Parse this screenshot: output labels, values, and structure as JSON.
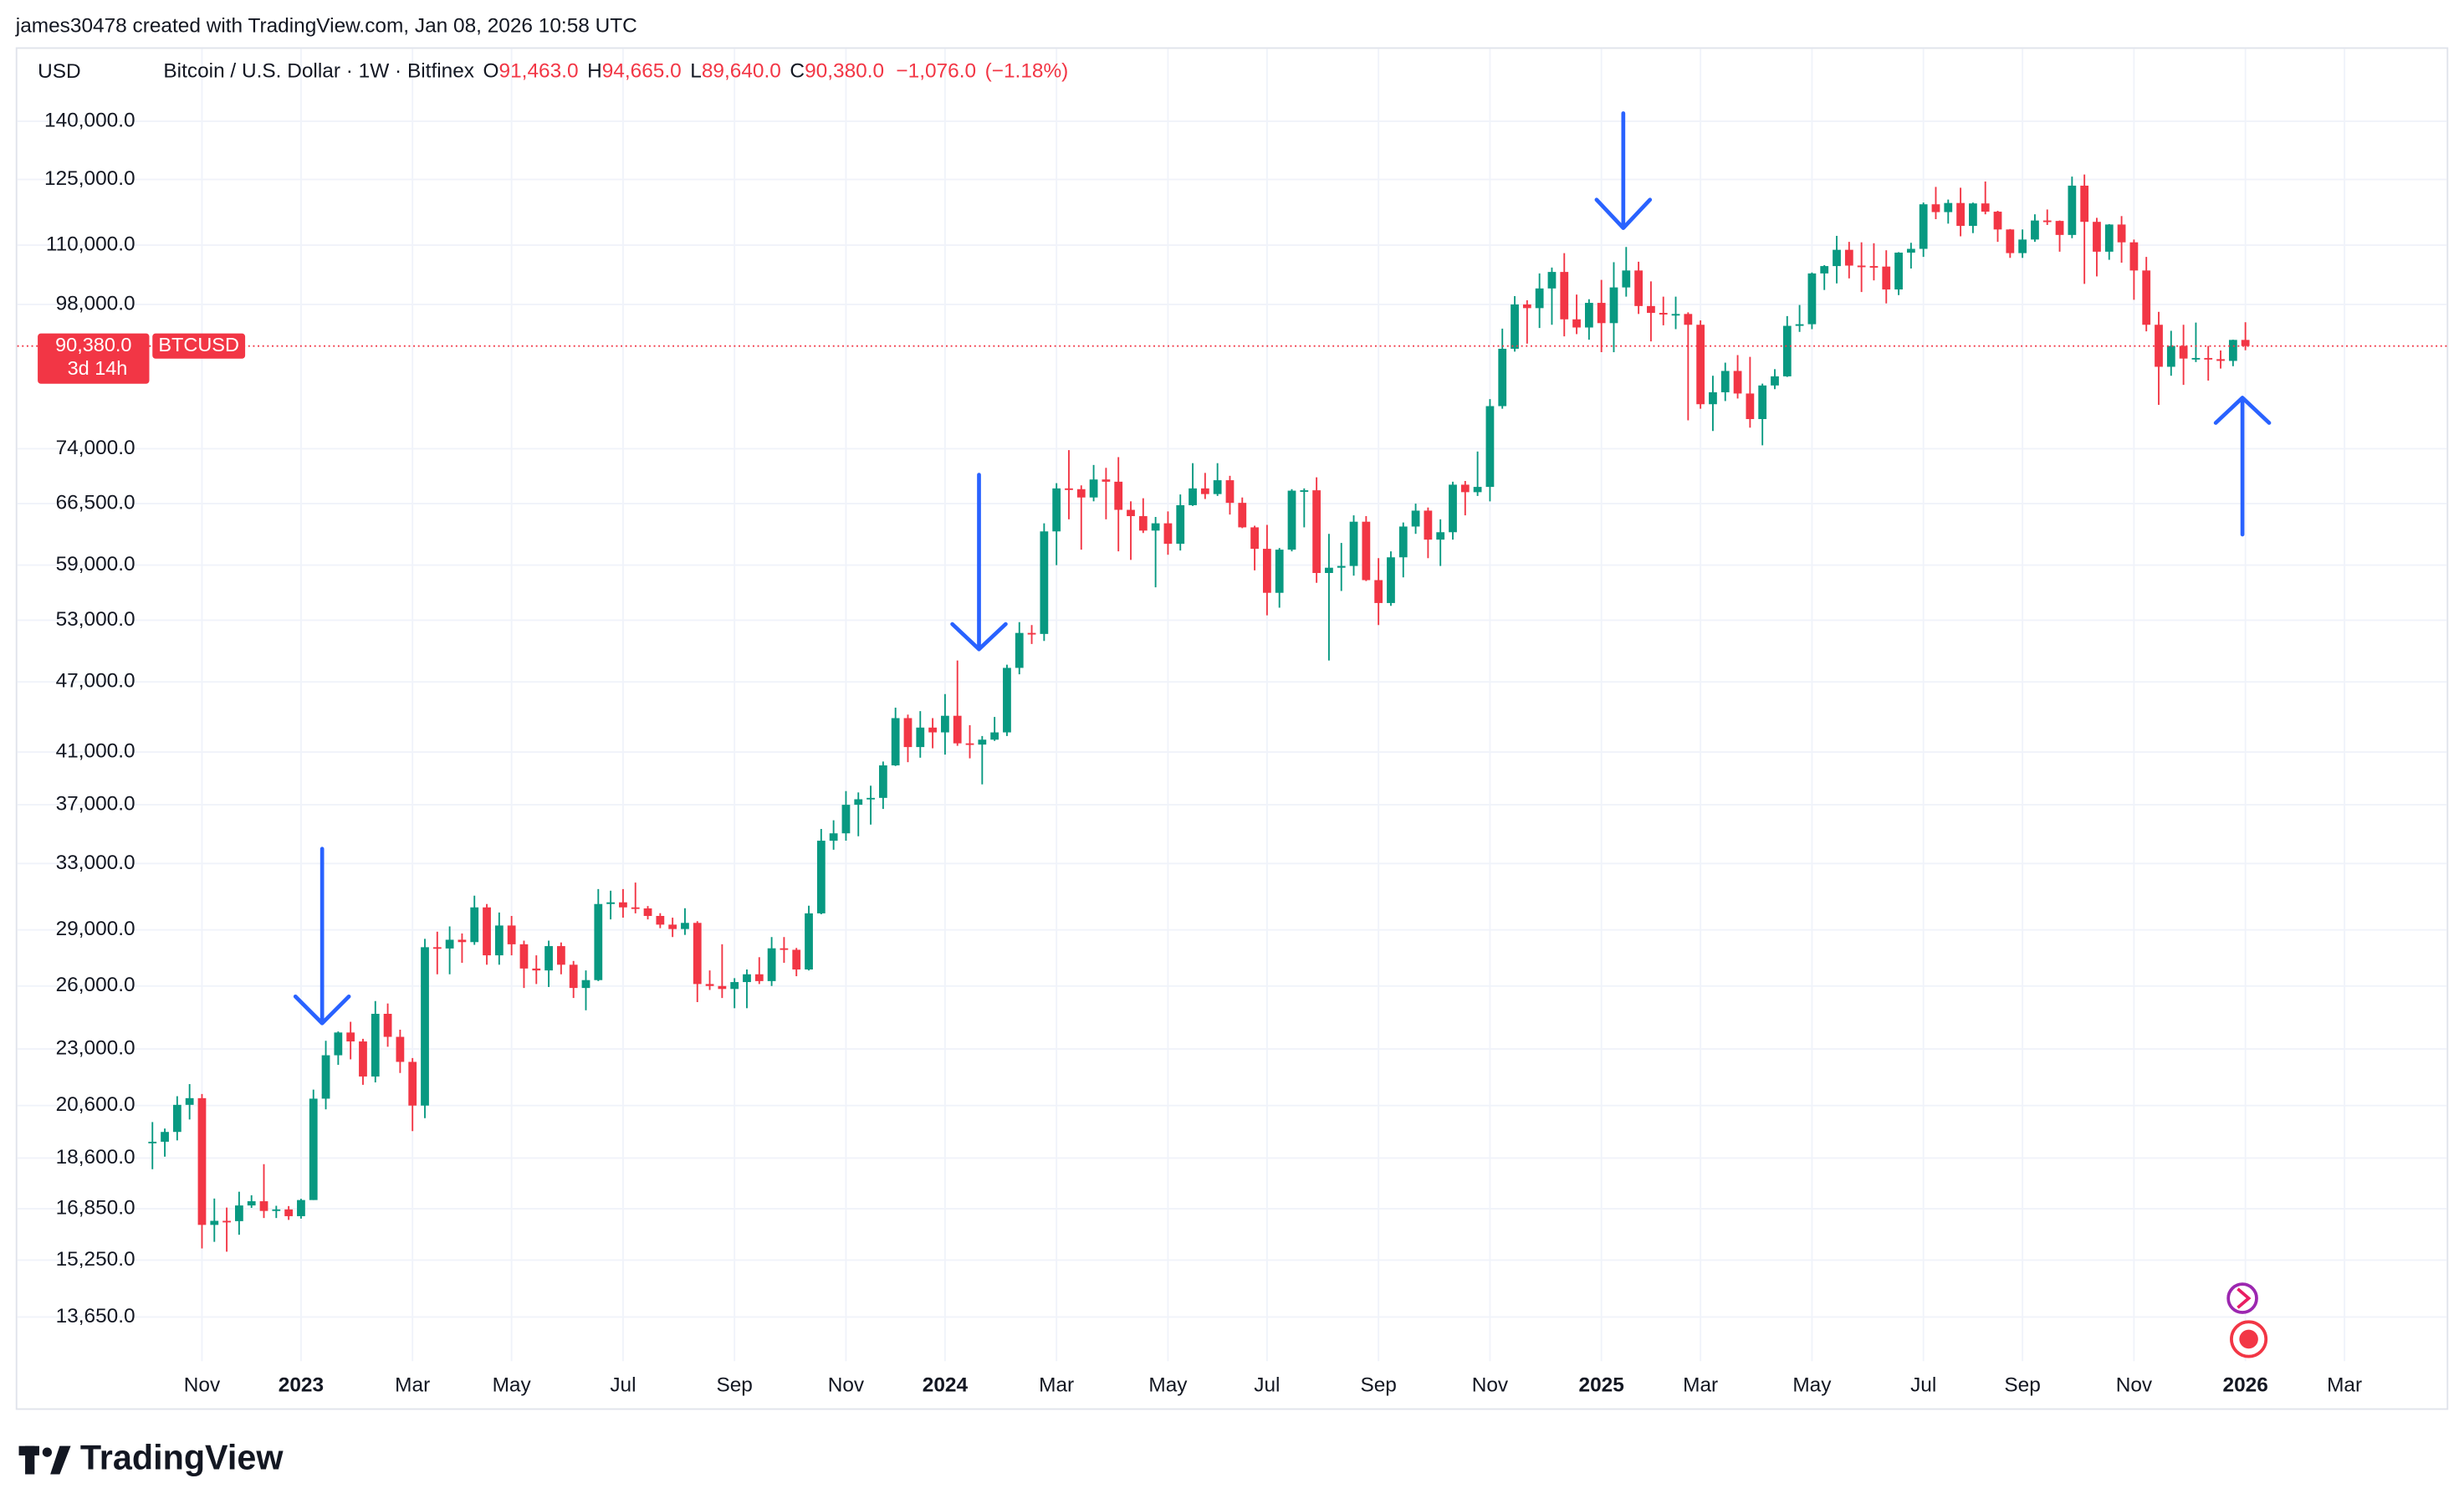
{
  "attribution": "james30478 created with TradingView.com, Jan 08, 2026 10:58 UTC",
  "brand": "TradingView",
  "chart_data": {
    "type": "candlestick",
    "currency": "USD",
    "symbol_title": "Bitcoin / U.S. Dollar · 1W · Bitfinex",
    "legend_fields": [
      {
        "key": "O",
        "value": 91463,
        "label": "91,463.0"
      },
      {
        "key": "H",
        "value": 94665,
        "label": "94,665.0"
      },
      {
        "key": "L",
        "value": 89640,
        "label": "89,640.0"
      },
      {
        "key": "C",
        "value": 90380,
        "label": "90,380.0"
      }
    ],
    "change": {
      "value": -1076,
      "label": "−1,076.0"
    },
    "change_pct": {
      "value": -1.18,
      "label": "(−1.18%)"
    },
    "price_tag": {
      "value": 90380,
      "label": "90,380.0",
      "symbol": "BTCUSD",
      "countdown": "3d 14h"
    },
    "up_color": "#089981",
    "down_color": "#f23645",
    "log_scale": true,
    "grid": true,
    "ylim": [
      12680,
      146600
    ],
    "yticks": [
      {
        "value": 140000,
        "label": "140,000.0"
      },
      {
        "value": 125000,
        "label": "125,000.0"
      },
      {
        "value": 110000,
        "label": "110,000.0"
      },
      {
        "value": 98000,
        "label": "98,000.0"
      },
      {
        "value": 74000,
        "label": "74,000.0"
      },
      {
        "value": 66500,
        "label": "66,500.0"
      },
      {
        "value": 59000,
        "label": "59,000.0"
      },
      {
        "value": 53000,
        "label": "53,000.0"
      },
      {
        "value": 47000,
        "label": "47,000.0"
      },
      {
        "value": 41000,
        "label": "41,000.0"
      },
      {
        "value": 37000,
        "label": "37,000.0"
      },
      {
        "value": 33000,
        "label": "33,000.0"
      },
      {
        "value": 29000,
        "label": "29,000.0"
      },
      {
        "value": 26000,
        "label": "26,000.0"
      },
      {
        "value": 23000,
        "label": "23,000.0"
      },
      {
        "value": 20600,
        "label": "20,600.0"
      },
      {
        "value": 18600,
        "label": "18,600.0"
      },
      {
        "value": 16850,
        "label": "16,850.0"
      },
      {
        "value": 15250,
        "label": "15,250.0"
      },
      {
        "value": 13650,
        "label": "13,650.0"
      }
    ],
    "categories": [
      null,
      null,
      null,
      null,
      "Nov",
      null,
      null,
      null,
      null,
      null,
      null,
      null,
      "2023",
      null,
      null,
      null,
      null,
      null,
      null,
      null,
      null,
      "Mar",
      null,
      null,
      null,
      null,
      null,
      null,
      null,
      "May",
      null,
      null,
      null,
      null,
      null,
      null,
      null,
      null,
      "Jul",
      null,
      null,
      null,
      null,
      null,
      null,
      null,
      null,
      "Sep",
      null,
      null,
      null,
      null,
      null,
      null,
      null,
      null,
      "Nov",
      null,
      null,
      null,
      null,
      null,
      null,
      null,
      "2024",
      null,
      null,
      null,
      null,
      null,
      null,
      null,
      null,
      "Mar",
      null,
      null,
      null,
      null,
      null,
      null,
      null,
      null,
      "May",
      null,
      null,
      null,
      null,
      null,
      null,
      null,
      "Jul",
      null,
      null,
      null,
      null,
      null,
      null,
      null,
      null,
      "Sep",
      null,
      null,
      null,
      null,
      null,
      null,
      null,
      null,
      "Nov",
      null,
      null,
      null,
      null,
      null,
      null,
      null,
      null,
      "2025",
      null,
      null,
      null,
      null,
      null,
      null,
      null,
      "Mar",
      null,
      null,
      null,
      null,
      null,
      null,
      null,
      null,
      "May",
      null,
      null,
      null,
      null,
      null,
      null,
      null,
      null,
      "Jul",
      null,
      null,
      null,
      null,
      null,
      null,
      null,
      "Sep",
      null,
      null,
      null,
      null,
      null,
      null,
      null,
      null,
      "Nov",
      null,
      null,
      null,
      null,
      null,
      null,
      null,
      null,
      "2026",
      null,
      null,
      null,
      null,
      null,
      null,
      null,
      "Mar",
      null,
      null,
      null,
      null,
      null,
      null,
      null,
      null
    ],
    "open": [
      19150,
      19200,
      19570,
      20630,
      20900,
      16330,
      16460,
      16450,
      16960,
      17100,
      16780,
      16830,
      16610,
      17140,
      20880,
      22720,
      23750,
      23340,
      21800,
      24630,
      23550,
      22430,
      20600,
      28040,
      27970,
      28450,
      28320,
      30300,
      27600,
      29250,
      28200,
      26900,
      26800,
      28100,
      27100,
      25900,
      26300,
      30500,
      30600,
      30300,
      30240,
      29800,
      29300,
      29050,
      29400,
      26100,
      26000,
      25850,
      26200,
      26600,
      26250,
      27980,
      27900,
      26850,
      29950,
      34500,
      35000,
      37000,
      37400,
      37500,
      39950,
      43800,
      41400,
      43000,
      42600,
      44000,
      41700,
      41600,
      42000,
      42600,
      48300,
      51700,
      51600,
      63000,
      68500,
      68400,
      67300,
      69700,
      69400,
      65700,
      64900,
      63100,
      64000,
      61500,
      66300,
      68500,
      67750,
      69600,
      66600,
      63500,
      60900,
      55900,
      60800,
      68200,
      68250,
      58100,
      58700,
      58900,
      64200,
      57300,
      54800,
      59900,
      63600,
      65600,
      62000,
      62900,
      69000,
      68000,
      68700,
      80400,
      89900,
      98000,
      97300,
      101100,
      104400,
      95200,
      93700,
      98300,
      94500,
      101300,
      104700,
      97700,
      96400,
      96100,
      96200,
      94200,
      80700,
      82600,
      86100,
      82400,
      78400,
      83700,
      85200,
      94000,
      94300,
      104100,
      105600,
      109000,
      105700,
      105600,
      105500,
      100900,
      108400,
      109200,
      119100,
      117300,
      119400,
      114200,
      119300,
      117400,
      113400,
      108300,
      111200,
      115400,
      115300,
      112200,
      123500,
      115100,
      108600,
      114500,
      110600,
      104700,
      94200,
      86800,
      90400,
      88200,
      88300,
      88100,
      87800,
      91463,
      null,
      null,
      null,
      null,
      null,
      null,
      null,
      null,
      null,
      null,
      null,
      null,
      null,
      null,
      null,
      null
    ],
    "high": [
      19950,
      19700,
      20980,
      21480,
      21070,
      17190,
      16890,
      17420,
      17300,
      18380,
      16950,
      16940,
      17180,
      21250,
      23370,
      23800,
      24250,
      23460,
      25250,
      25130,
      23880,
      22600,
      28500,
      28900,
      29200,
      28800,
      31000,
      30500,
      30000,
      29800,
      28400,
      27600,
      28400,
      28300,
      27300,
      26800,
      31400,
      31300,
      31400,
      31800,
      30380,
      29960,
      29700,
      30250,
      29500,
      26800,
      28200,
      26400,
      26850,
      27500,
      28600,
      28600,
      28000,
      30400,
      35300,
      35900,
      38000,
      37900,
      38400,
      40250,
      44700,
      44100,
      44400,
      43800,
      45900,
      49000,
      43200,
      42300,
      43900,
      48600,
      52800,
      52500,
      64000,
      69200,
      73800,
      68900,
      71700,
      71300,
      72800,
      66800,
      67200,
      64800,
      65500,
      67700,
      71950,
      70600,
      71950,
      70200,
      67300,
      63700,
      63800,
      61000,
      68400,
      68500,
      70000,
      62700,
      61600,
      65000,
      64900,
      59800,
      60600,
      64100,
      66500,
      66000,
      64500,
      69400,
      69500,
      73600,
      81500,
      93500,
      99600,
      98800,
      104100,
      105300,
      108300,
      99900,
      99000,
      102800,
      106400,
      109600,
      106500,
      102500,
      99500,
      99500,
      96500,
      95000,
      85300,
      87500,
      88800,
      88500,
      84000,
      86400,
      95800,
      97900,
      104300,
      105800,
      112000,
      110700,
      110600,
      110400,
      108900,
      108500,
      110500,
      119500,
      123200,
      120200,
      123000,
      119500,
      124500,
      117600,
      113500,
      113400,
      116800,
      117900,
      115400,
      125700,
      126200,
      116000,
      114600,
      116400,
      111200,
      107500,
      96600,
      93100,
      94200,
      94600,
      90400,
      89600,
      91500,
      94665,
      null,
      null,
      null,
      null,
      null,
      null,
      null,
      null,
      null,
      null,
      null,
      null,
      null,
      null,
      null,
      null
    ],
    "low": [
      18200,
      18650,
      19250,
      20050,
      15600,
      15800,
      15500,
      16020,
      16880,
      16550,
      16550,
      16490,
      16530,
      17140,
      20450,
      22300,
      22540,
      21450,
      21550,
      23100,
      21950,
      19600,
      20100,
      26600,
      26600,
      27200,
      28170,
      27100,
      27100,
      27600,
      25900,
      26100,
      25950,
      26600,
      25400,
      24800,
      26250,
      29600,
      29700,
      29950,
      29600,
      29100,
      28600,
      28720,
      25200,
      25800,
      25400,
      24900,
      24900,
      26100,
      26000,
      27200,
      26500,
      26800,
      29900,
      33900,
      34500,
      34800,
      35600,
      36700,
      39900,
      40200,
      40550,
      41300,
      40800,
      41500,
      40500,
      38500,
      41900,
      42300,
      47700,
      50600,
      50900,
      59000,
      64500,
      60800,
      66800,
      64500,
      60600,
      59600,
      62800,
      56500,
      60200,
      60700,
      66200,
      67100,
      67500,
      65100,
      63400,
      58400,
      53500,
      54300,
      60600,
      63500,
      57000,
      49000,
      56100,
      57800,
      57200,
      52500,
      54500,
      57600,
      62700,
      59800,
      58900,
      62000,
      65000,
      67500,
      66800,
      80000,
      89400,
      90800,
      93600,
      94200,
      92100,
      92500,
      91500,
      89300,
      89300,
      99500,
      96200,
      91200,
      94100,
      93400,
      78200,
      80000,
      76600,
      81200,
      81600,
      77100,
      74500,
      83100,
      85100,
      92900,
      93400,
      100800,
      102100,
      103100,
      100400,
      102700,
      98200,
      99800,
      105100,
      107500,
      115700,
      114700,
      111900,
      112600,
      116800,
      110700,
      107300,
      107300,
      110700,
      114400,
      108600,
      111500,
      102000,
      103500,
      106900,
      106300,
      98900,
      93000,
      80600,
      85300,
      83800,
      87600,
      84500,
      86500,
      86900,
      89640,
      null,
      null,
      null,
      null,
      null,
      null,
      null,
      null,
      null,
      null,
      null,
      null,
      null,
      null,
      null,
      null
    ],
    "close": [
      19200,
      19570,
      20630,
      20900,
      16330,
      16460,
      16450,
      16960,
      17100,
      16780,
      16830,
      16610,
      17140,
      20880,
      22720,
      23750,
      23340,
      21800,
      24630,
      23550,
      22430,
      20600,
      28040,
      27970,
      28450,
      28320,
      30300,
      27600,
      29250,
      28200,
      26900,
      26800,
      28100,
      27100,
      25900,
      26300,
      30500,
      30600,
      30300,
      30240,
      29800,
      29300,
      29050,
      29400,
      26100,
      26000,
      25850,
      26200,
      26600,
      26250,
      27980,
      27900,
      26850,
      29950,
      34500,
      35000,
      37000,
      37400,
      37500,
      39950,
      43800,
      41400,
      43000,
      42600,
      44000,
      41700,
      41600,
      42000,
      42600,
      48300,
      51700,
      51600,
      63000,
      68500,
      68400,
      67300,
      69700,
      69400,
      65700,
      64900,
      63100,
      64000,
      61500,
      66300,
      68500,
      67750,
      69600,
      66600,
      63500,
      60900,
      55900,
      60800,
      68200,
      68250,
      58100,
      58700,
      58900,
      64200,
      57300,
      54800,
      59900,
      63600,
      65600,
      62000,
      62900,
      69000,
      68000,
      68700,
      80400,
      89900,
      98000,
      97300,
      101100,
      104400,
      95200,
      93700,
      98300,
      94500,
      101300,
      104700,
      97700,
      96400,
      96100,
      96200,
      94200,
      80700,
      82600,
      86100,
      82400,
      78400,
      83700,
      85200,
      94000,
      94300,
      104100,
      105600,
      109000,
      105700,
      105600,
      105500,
      100900,
      108400,
      109200,
      119100,
      117300,
      119400,
      114200,
      119300,
      117400,
      113400,
      108300,
      111200,
      115400,
      115300,
      112200,
      123500,
      115100,
      108600,
      114500,
      110600,
      104700,
      94200,
      86800,
      90400,
      88200,
      88300,
      88100,
      87800,
      91463,
      90380,
      null,
      null,
      null,
      null,
      null,
      null,
      null,
      null,
      null,
      null,
      null,
      null,
      null,
      null,
      null,
      null
    ]
  }
}
